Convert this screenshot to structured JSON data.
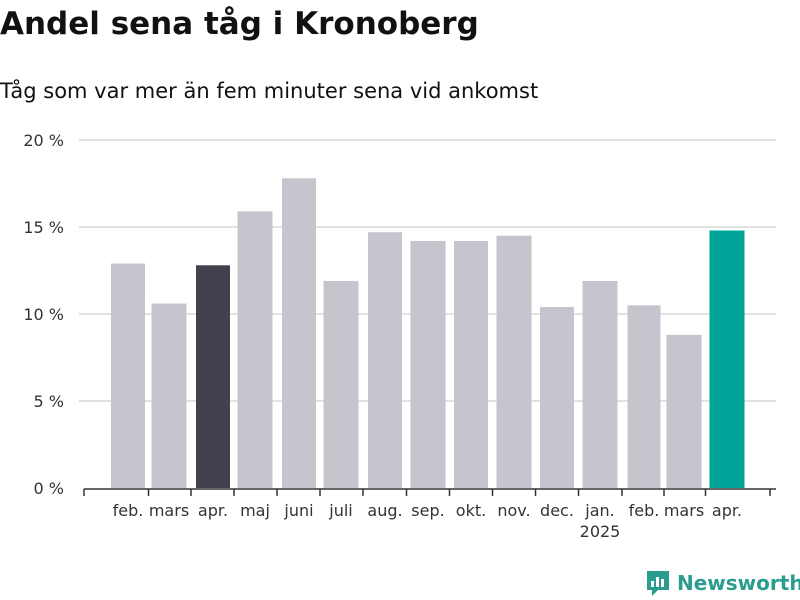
{
  "title": "Andel sena tåg i Kronoberg",
  "subtitle": "Tåg som var mer än fem minuter sena vid ankomst",
  "brand": "Newsworthy",
  "colors": {
    "bar": "#c6c5cd",
    "highlight_previous": "#42414d",
    "highlight_current": "#00a398",
    "grid": "#d9d9d9",
    "brand": "#2a9d8f"
  },
  "chart_data": {
    "type": "bar",
    "categories": [
      "feb.",
      "mars",
      "apr.",
      "maj",
      "juni",
      "juli",
      "aug.",
      "sep.",
      "okt.",
      "nov.",
      "dec.",
      "jan.",
      "feb.",
      "mars",
      "apr."
    ],
    "year_labels": [
      {
        "index": 11,
        "label": "2025"
      }
    ],
    "values": [
      12.9,
      10.6,
      12.8,
      15.9,
      17.8,
      11.9,
      14.7,
      14.2,
      14.2,
      14.5,
      10.4,
      11.9,
      10.5,
      8.8,
      14.8
    ],
    "highlight": {
      "previous_index": 2,
      "current_index": 14
    },
    "ylim": [
      0,
      20
    ],
    "yticks": [
      0,
      5,
      10,
      15,
      20
    ],
    "ytick_labels": [
      "0 %",
      "5 %",
      "10 %",
      "15 %",
      "20 %"
    ],
    "xlabel": "",
    "ylabel": "",
    "grid": true
  }
}
